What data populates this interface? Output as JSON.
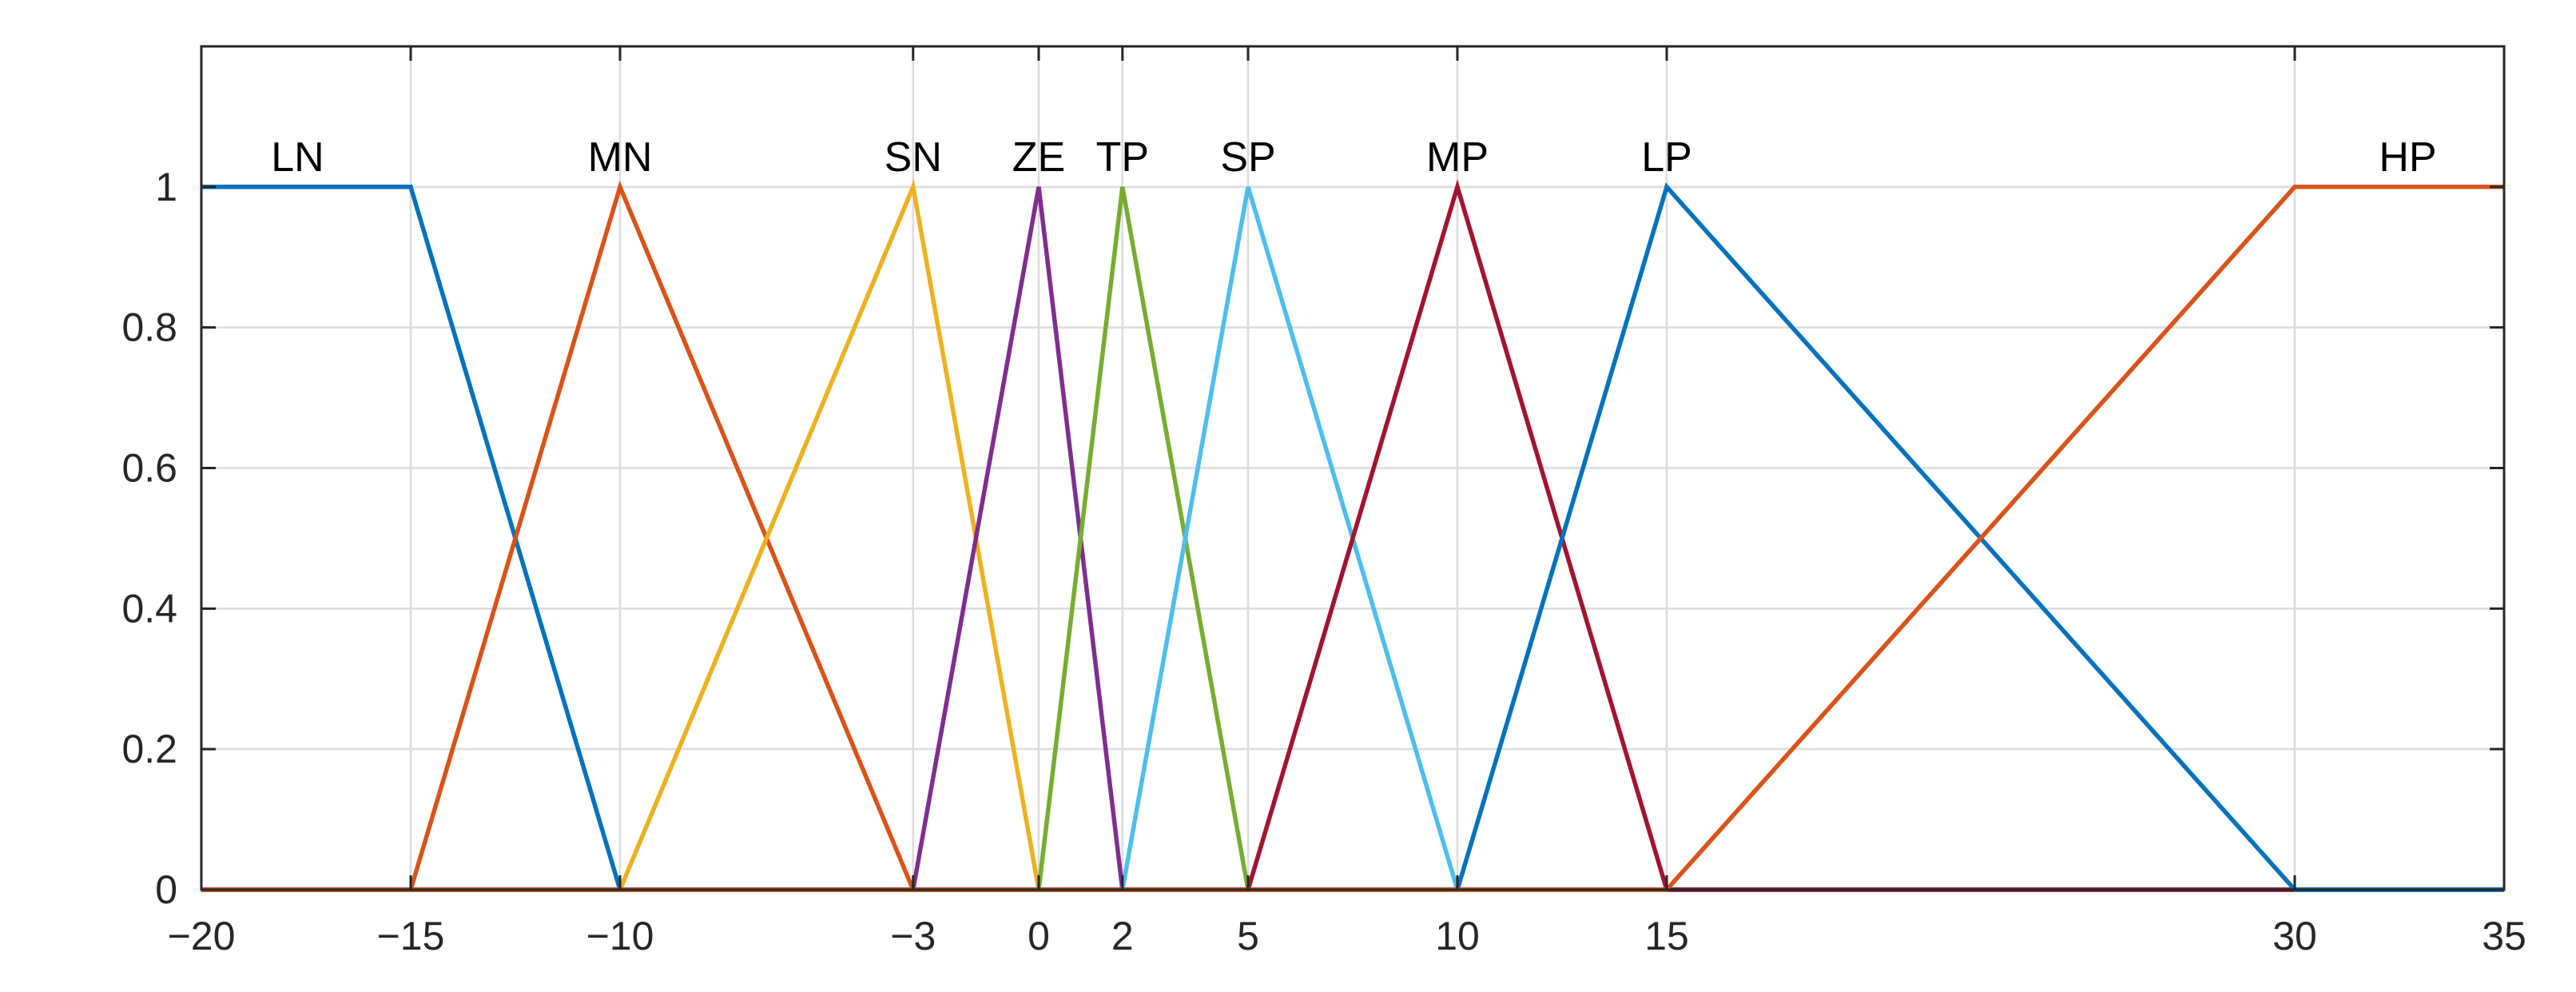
{
  "chart_data": {
    "type": "line",
    "title": "",
    "xlabel": "",
    "ylabel": "",
    "xlim": [
      -20,
      35
    ],
    "ylim": [
      0,
      1.2
    ],
    "grid": true,
    "x_ticks": [
      -20,
      -15,
      -10,
      -3,
      0,
      2,
      5,
      10,
      15,
      30,
      35
    ],
    "x_tick_labels": [
      "−20",
      "−15",
      "−10",
      "−3",
      "0",
      "2",
      "5",
      "10",
      "15",
      "30",
      "35"
    ],
    "y_ticks": [
      0,
      0.2,
      0.4,
      0.6,
      0.8,
      1
    ],
    "y_tick_labels": [
      "0",
      "0.2",
      "0.4",
      "0.6",
      "0.8",
      "1"
    ],
    "series": [
      {
        "name": "LN",
        "color": "#0072BD",
        "label_x": -17.7,
        "points": [
          [
            -20,
            1
          ],
          [
            -15,
            1
          ],
          [
            -10,
            0
          ],
          [
            35,
            0
          ]
        ]
      },
      {
        "name": "MN",
        "color": "#D95319",
        "label_x": -10,
        "points": [
          [
            -20,
            0
          ],
          [
            -15,
            0
          ],
          [
            -10,
            1
          ],
          [
            -3,
            0
          ],
          [
            35,
            0
          ]
        ]
      },
      {
        "name": "SN",
        "color": "#EDB120",
        "label_x": -3,
        "points": [
          [
            -20,
            0
          ],
          [
            -10,
            0
          ],
          [
            -3,
            1
          ],
          [
            0,
            0
          ],
          [
            35,
            0
          ]
        ]
      },
      {
        "name": "ZE",
        "color": "#7E2F8E",
        "label_x": 0,
        "points": [
          [
            -20,
            0
          ],
          [
            -3,
            0
          ],
          [
            0,
            1
          ],
          [
            2,
            0
          ],
          [
            35,
            0
          ]
        ]
      },
      {
        "name": "TP",
        "color": "#77AC30",
        "label_x": 2,
        "points": [
          [
            -20,
            0
          ],
          [
            0,
            0
          ],
          [
            2,
            1
          ],
          [
            5,
            0
          ],
          [
            35,
            0
          ]
        ]
      },
      {
        "name": "SP",
        "color": "#4DBEEE",
        "label_x": 5,
        "points": [
          [
            -20,
            0
          ],
          [
            2,
            0
          ],
          [
            5,
            1
          ],
          [
            10,
            0
          ],
          [
            35,
            0
          ]
        ]
      },
      {
        "name": "MP",
        "color": "#A2142F",
        "label_x": 10,
        "points": [
          [
            -20,
            0
          ],
          [
            5,
            0
          ],
          [
            10,
            1
          ],
          [
            15,
            0
          ],
          [
            35,
            0
          ]
        ]
      },
      {
        "name": "LP",
        "color": "#0072BD",
        "label_x": 15,
        "points": [
          [
            -20,
            0
          ],
          [
            10,
            0
          ],
          [
            15,
            1
          ],
          [
            30,
            0
          ],
          [
            35,
            0
          ]
        ]
      },
      {
        "name": "HP",
        "color": "#D95319",
        "label_x": 32.7,
        "points": [
          [
            -20,
            0
          ],
          [
            15,
            0
          ],
          [
            30,
            1
          ],
          [
            35,
            1
          ]
        ]
      }
    ]
  }
}
